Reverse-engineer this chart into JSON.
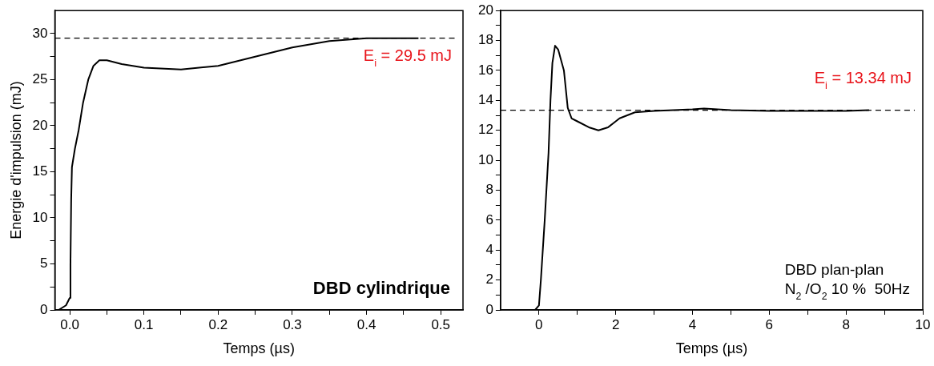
{
  "chart_data": [
    {
      "type": "line",
      "xlabel": "Temps (µs)",
      "ylabel": "Energie d'impulsion (mJ)",
      "x": [
        -0.015,
        -0.005,
        0,
        0.001,
        0.002,
        0.003,
        0.007,
        0.012,
        0.018,
        0.025,
        0.032,
        0.04,
        0.05,
        0.07,
        0.1,
        0.15,
        0.2,
        0.25,
        0.3,
        0.35,
        0.4,
        0.47
      ],
      "series": [
        {
          "color": "#000000",
          "values": [
            0,
            0.5,
            1.3,
            5,
            12,
            15.5,
            17.5,
            19.5,
            22.5,
            25,
            26.5,
            27.1,
            27.1,
            26.7,
            26.3,
            26.1,
            26.5,
            27.5,
            28.5,
            29.2,
            29.5,
            29.5
          ]
        }
      ],
      "xlim": [
        -0.02,
        0.53
      ],
      "ylim": [
        0,
        32.5
      ],
      "xticks": [
        {
          "value": 0,
          "label": "0.0"
        },
        {
          "value": 0.05,
          "label": null
        },
        {
          "value": 0.1,
          "label": "0.1"
        },
        {
          "value": 0.15,
          "label": null
        },
        {
          "value": 0.2,
          "label": "0.2"
        },
        {
          "value": 0.25,
          "label": null
        },
        {
          "value": 0.3,
          "label": "0.3"
        },
        {
          "value": 0.35,
          "label": null
        },
        {
          "value": 0.4,
          "label": "0.4"
        },
        {
          "value": 0.45,
          "label": null
        },
        {
          "value": 0.5,
          "label": "0.5"
        }
      ],
      "yticks": [
        0,
        {
          "value": 2.5,
          "label": null
        },
        5,
        {
          "value": 7.5,
          "label": null
        },
        10,
        {
          "value": 12.5,
          "label": null
        },
        15,
        {
          "value": 17.5,
          "label": null
        },
        20,
        {
          "value": 22.5,
          "label": null
        },
        25,
        {
          "value": 27.5,
          "label": null
        },
        30
      ],
      "ref_lines": [
        {
          "axis": "y",
          "value": 29.5,
          "label": "E$_{i}$ = 29.5 mJ",
          "color": "#000000",
          "line_style": "dashed"
        }
      ],
      "annotations": [
        "DBD cylindrique"
      ],
      "marker": "none",
      "line_style": "solid",
      "grid": false,
      "legend": false
    },
    {
      "type": "line",
      "xlabel": "Temps (µs)",
      "x": [
        -0.1,
        0,
        0.05,
        0.15,
        0.25,
        0.3,
        0.35,
        0.42,
        0.5,
        0.65,
        0.75,
        0.85,
        1,
        1.3,
        1.55,
        1.8,
        2.1,
        2.5,
        3,
        4,
        4.3,
        5,
        6,
        7,
        8,
        8.6
      ],
      "series": [
        {
          "color": "#000000",
          "values": [
            0,
            0.3,
            2,
            6,
            10.5,
            14,
            16.5,
            17.65,
            17.4,
            16,
            13.5,
            12.8,
            12.6,
            12.2,
            12.0,
            12.2,
            12.8,
            13.2,
            13.3,
            13.4,
            13.45,
            13.35,
            13.3,
            13.3,
            13.3,
            13.35
          ]
        }
      ],
      "xlim": [
        -1,
        10
      ],
      "ylim": [
        0,
        20
      ],
      "xticks": [
        0,
        {
          "value": 1,
          "label": null
        },
        2,
        {
          "value": 3,
          "label": null
        },
        4,
        {
          "value": 5,
          "label": null
        },
        6,
        {
          "value": 7,
          "label": null
        },
        8,
        {
          "value": 9,
          "label": null
        },
        10
      ],
      "yticks": [
        0,
        {
          "value": 1,
          "label": null
        },
        2,
        {
          "value": 3,
          "label": null
        },
        4,
        {
          "value": 5,
          "label": null
        },
        6,
        {
          "value": 7,
          "label": null
        },
        8,
        {
          "value": 9,
          "label": null
        },
        10,
        {
          "value": 11,
          "label": null
        },
        12,
        {
          "value": 13,
          "label": null
        },
        14,
        {
          "value": 15,
          "label": null
        },
        16,
        {
          "value": 17,
          "label": null
        },
        18,
        {
          "value": 19,
          "label": null
        },
        20
      ],
      "ref_lines": [
        {
          "axis": "y",
          "value": 13.34,
          "label": "E$_{i}$ = 13.34 mJ",
          "color": "#000000",
          "line_style": "dashed"
        }
      ],
      "annotations": [
        "DBD plan-plan",
        "N$_{2}$ /O$_{2}$ 10 %  50Hz"
      ],
      "marker": "none",
      "line_style": "solid",
      "grid": false,
      "legend": false
    }
  ]
}
